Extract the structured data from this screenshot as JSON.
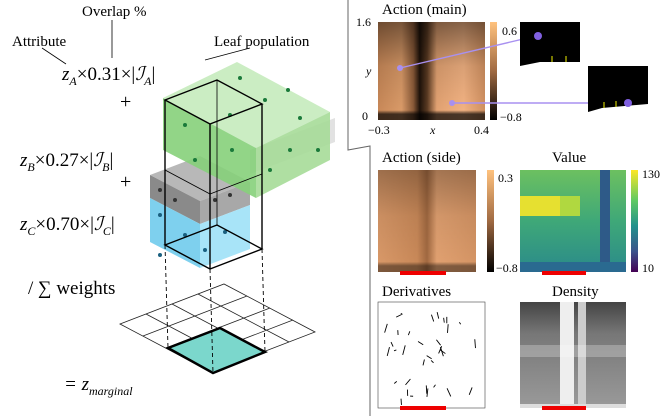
{
  "annotations": {
    "overlap": "Overlap %",
    "attribute": "Attribute",
    "leaf_population": "Leaf population"
  },
  "formula": {
    "terms": [
      {
        "z": "z",
        "z_sub": "A",
        "middle": "×0.31×|",
        "set": "ℐ",
        "set_sub": "A",
        "end": "|"
      },
      {
        "z": "z",
        "z_sub": "B",
        "middle": "×0.27×|",
        "set": "ℐ",
        "set_sub": "B",
        "end": "|"
      },
      {
        "z": "z",
        "z_sub": "C",
        "middle": "×0.70×|",
        "set": "ℐ",
        "set_sub": "C",
        "end": "|"
      }
    ],
    "operators": [
      "+",
      "+"
    ],
    "normalizer": "/ ∑ weights",
    "result": {
      "lhs": "= z",
      "sub": "marginal"
    }
  },
  "panels": {
    "action_main": {
      "title": "Action (main)",
      "y_label": "y",
      "x_label": "x",
      "y_ticks": [
        "1.6",
        "0"
      ],
      "x_ticks": [
        "−0.3",
        "0.4"
      ],
      "colorbar": [
        "0.6",
        "−0.8"
      ]
    },
    "action_side": {
      "title": "Action (side)",
      "colorbar": [
        "0.3",
        "−0.8"
      ]
    },
    "value": {
      "title": "Value",
      "colorbar": [
        "130",
        "10"
      ]
    },
    "derivatives": {
      "title": "Derivatives"
    },
    "density": {
      "title": "Density"
    }
  }
}
